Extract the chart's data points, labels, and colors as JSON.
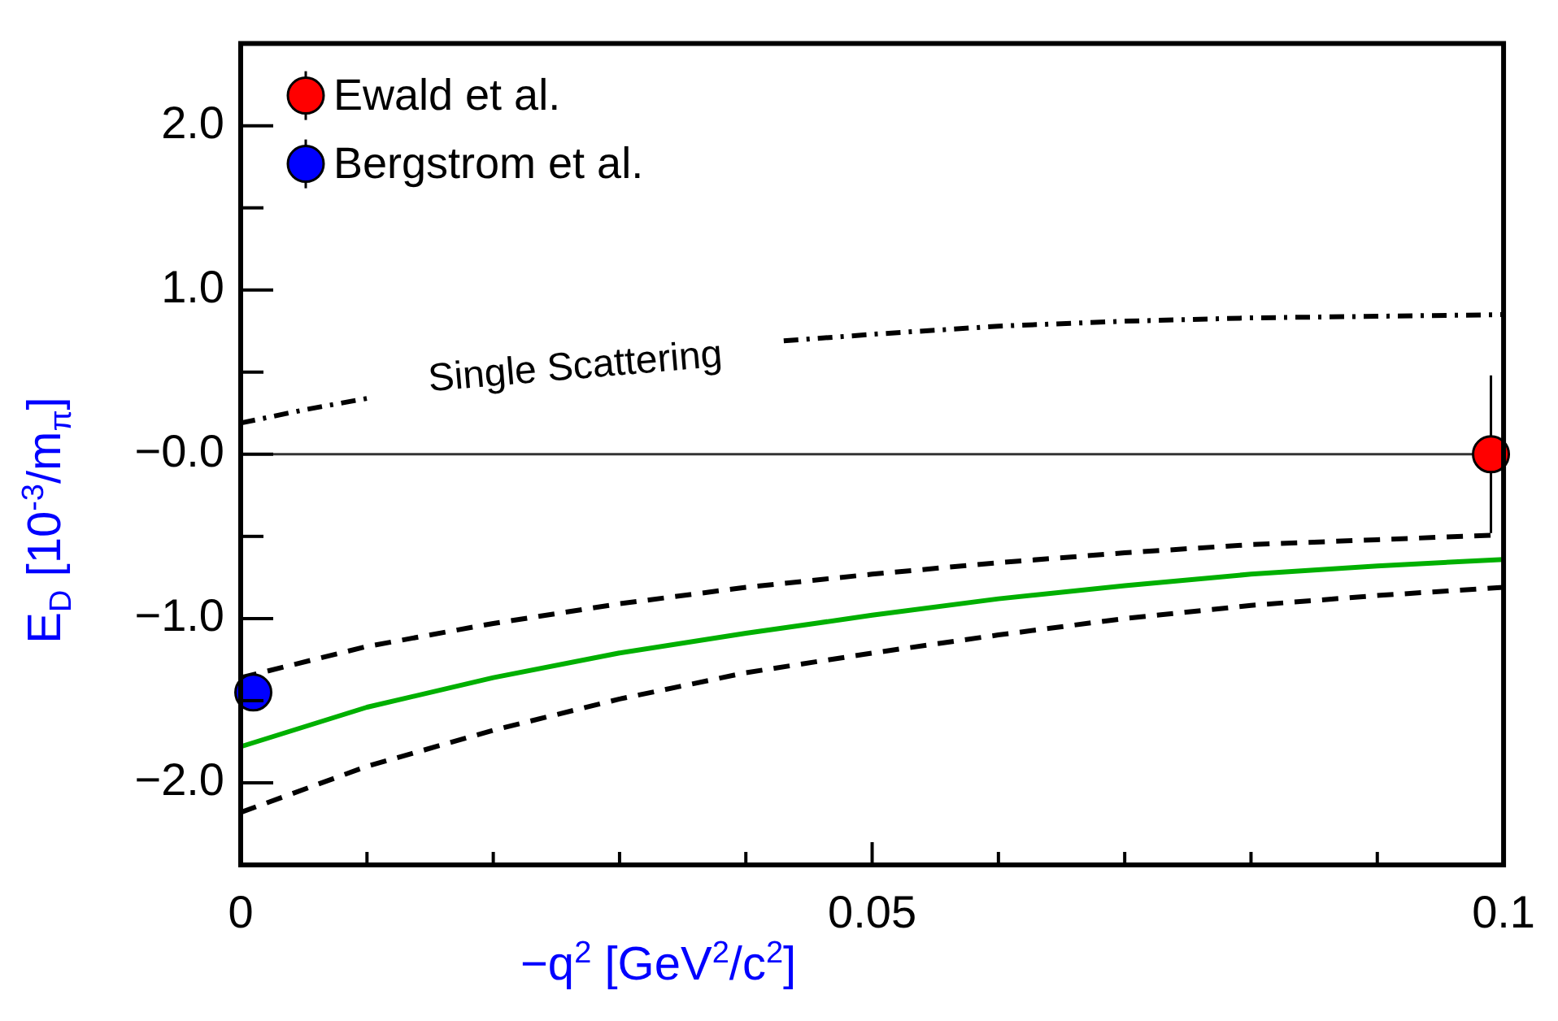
{
  "chart_data": {
    "type": "line",
    "xlabel": "−q$^{2}$  [GeV$^{2}$/c$^{2}$]",
    "ylabel": "E$_{D}$  [10$^{-3}$/m$_{π}$]",
    "xlim": [
      0,
      0.1
    ],
    "ylim": [
      -2.5,
      2.5
    ],
    "xticks": [
      0,
      {
        "value": 0.01,
        "label": null
      },
      {
        "value": 0.02,
        "label": null
      },
      {
        "value": 0.03,
        "label": null
      },
      {
        "value": 0.04,
        "label": null
      },
      0.05,
      {
        "value": 0.06,
        "label": null
      },
      {
        "value": 0.07,
        "label": null
      },
      {
        "value": 0.08,
        "label": null
      },
      {
        "value": 0.09,
        "label": null
      },
      0.1
    ],
    "yticks": [
      {
        "value": -2,
        "label": "−2.0"
      },
      {
        "value": -1.5,
        "label": null
      },
      {
        "value": -1,
        "label": "−1.0"
      },
      {
        "value": -0.5,
        "label": null
      },
      {
        "value": 0,
        "label": "−0.0"
      },
      {
        "value": 0.5,
        "label": null
      },
      {
        "value": 1,
        "label": "1.0"
      },
      {
        "value": 1.5,
        "label": null
      },
      {
        "value": 2,
        "label": "2.0"
      }
    ],
    "grid": false,
    "legend": "top left",
    "ref_lines": [
      {
        "axis": "y",
        "value": 0,
        "color": "#333333",
        "line_style": "solid"
      }
    ],
    "annotations": [
      "Single Scattering"
    ],
    "series": [
      {
        "color": "#000000",
        "line_style": "dashdot",
        "marker": "none",
        "x": [
          0,
          0.005,
          0.01,
          0.02,
          0.03,
          0.043,
          0.05,
          0.06,
          0.07,
          0.08,
          0.09,
          0.1
        ],
        "values": [
          0.19,
          0.27,
          0.34,
          null,
          null,
          0.69,
          0.73,
          0.78,
          0.81,
          0.83,
          0.84,
          0.85
        ]
      },
      {
        "color": "#000000",
        "line_style": "dashed",
        "marker": "none",
        "x": [
          0,
          0.01,
          0.02,
          0.03,
          0.04,
          0.05,
          0.06,
          0.07,
          0.08,
          0.09,
          0.1
        ],
        "values": [
          -1.36,
          -1.17,
          -1.03,
          -0.91,
          -0.81,
          -0.73,
          -0.66,
          -0.6,
          -0.55,
          -0.52,
          -0.49
        ]
      },
      {
        "color": "#00b000",
        "line_style": "solid",
        "marker": "none",
        "x": [
          0,
          0.01,
          0.02,
          0.03,
          0.04,
          0.05,
          0.06,
          0.07,
          0.08,
          0.09,
          0.1
        ],
        "values": [
          -1.78,
          -1.54,
          -1.36,
          -1.21,
          -1.09,
          -0.98,
          -0.88,
          -0.8,
          -0.73,
          -0.68,
          -0.64
        ]
      },
      {
        "color": "#000000",
        "line_style": "dashed",
        "marker": "none",
        "x": [
          0,
          0.01,
          0.02,
          0.03,
          0.04,
          0.05,
          0.06,
          0.07,
          0.08,
          0.09,
          0.1
        ],
        "values": [
          -2.18,
          -1.9,
          -1.68,
          -1.49,
          -1.33,
          -1.21,
          -1.1,
          -1.0,
          -0.92,
          -0.86,
          -0.81
        ]
      },
      {
        "type": "scatter",
        "name": "Ewald et al.",
        "color": "#ff0000",
        "marker": "circle",
        "x": [
          0.099
        ],
        "values": [
          0
        ],
        "errors": [
          0.48
        ]
      },
      {
        "type": "scatter",
        "name": "Bergstrom et al.",
        "color": "#0000ff",
        "marker": "circle",
        "x": [
          0.001
        ],
        "values": [
          -1.45
        ]
      }
    ]
  }
}
